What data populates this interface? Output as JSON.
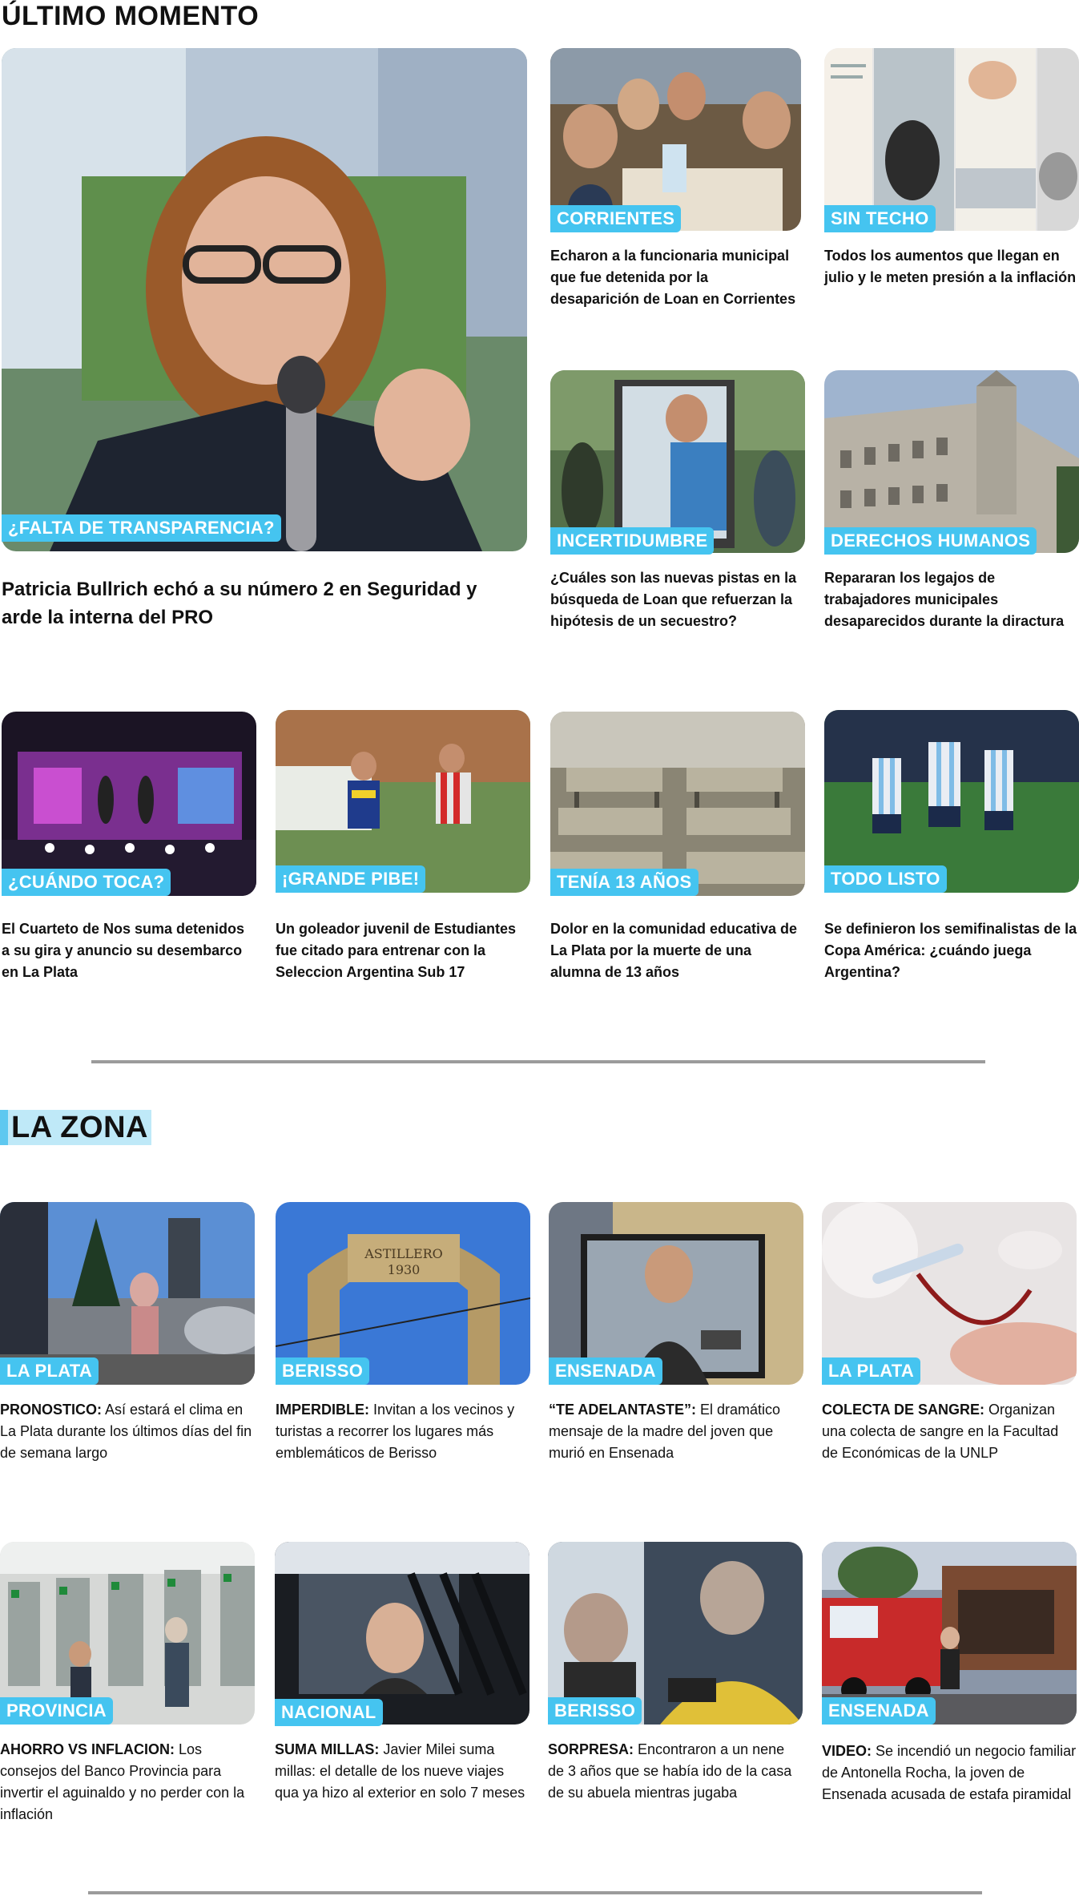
{
  "sections": {
    "ultimo": {
      "title": "ÚLTIMO MOMENTO"
    },
    "zona": {
      "title": "LA ZONA"
    }
  },
  "ultimo_cards": [
    {
      "tag": "¿FALTA DE TRANSPARENCIA?",
      "headline": "Patricia Bullrich echó a su número 2 en Seguridad y arde la interna del PRO",
      "image": "patricia-bullrich-microphone-photo"
    },
    {
      "tag": "CORRIENTES",
      "headline": "Echaron a la funcionaria municipal que fue detenida por la desaparición de Loan en Corrientes",
      "image": "family-table-photo"
    },
    {
      "tag": "SIN TECHO",
      "headline": "Todos los aumentos que llegan en julio y le meten presión a la inflación",
      "image": "bills-collage-photo"
    },
    {
      "tag": "INCERTIDUMBRE",
      "headline": "¿Cuáles son las nuevas pistas en la búsqueda de Loan que refuerzan la hipótesis de un secuestro?",
      "image": "search-loan-photo"
    },
    {
      "tag": "DERECHOS HUMANOS",
      "headline": "Repararan los legajos de trabajadores municipales desaparecidos durante la diractura",
      "image": "municipal-building-photo"
    },
    {
      "tag": "¿CUÁNDO TOCA?",
      "headline": "El Cuarteto de Nos suma detenidos a su gira y anuncio su desembarco en La Plata",
      "image": "concert-stage-photo"
    },
    {
      "tag": "¡GRANDE PIBE!",
      "headline": "Un goleador juvenil de Estudiantes fue citado para entrenar con la Seleccion Argentina Sub 17",
      "image": "youth-soccer-photo"
    },
    {
      "tag": "TENÍA 13 AÑOS",
      "headline": "Dolor en la comunidad educativa de La Plata por la muerte de una alumna de 13 años",
      "image": "classroom-desks-photo"
    },
    {
      "tag": "TODO LISTO",
      "headline": "Se definieron los semifinalistas de la Copa América: ¿cuándo juega Argentina?",
      "image": "argentina-players-photo"
    }
  ],
  "zona_cards": [
    {
      "tag": "LA PLATA",
      "lead": "PRONOSTICO:",
      "rest": " Así estará el clima en La Plata durante los últimos días del fin de semana largo",
      "image": "street-weather-photo"
    },
    {
      "tag": "BERISSO",
      "lead": "IMPERDIBLE:",
      "rest": "  Invitan a los vecinos y turistas a recorrer los lugares más emblemáticos de Berisso",
      "image": "berisso-arch-photo"
    },
    {
      "tag": "ENSENADA",
      "lead": "“TE ADELANTASTE”:",
      "rest": " El dramático mensaje de la madre del joven que murió en Ensenada",
      "image": "young-man-photo"
    },
    {
      "tag": "LA PLATA",
      "lead": "COLECTA DE SANGRE:",
      "rest": " Organizan una colecta de sangre en la Facultad de Económicas de la UNLP",
      "image": "blood-donation-photo"
    },
    {
      "tag": "PROVINCIA",
      "lead": "AHORRO VS INFLACION:",
      "rest": " Los consejos del Banco Provincia para invertir el aguinaldo y no perder con la inflación",
      "image": "atm-machines-photo"
    },
    {
      "tag": "NACIONAL",
      "lead": "SUMA MILLAS:",
      "rest": " Javier Milei suma millas: el detalle de los nueve viajes qua ya hizo al exterior en solo 7 meses",
      "image": "milei-car-photo"
    },
    {
      "tag": "BERISSO",
      "lead": "SORPRESA:",
      "rest": " Encontraron a un nene de 3 años que se había ido de la casa de su abuela mientras jugaba",
      "image": "child-found-photo"
    },
    {
      "tag": "ENSENADA",
      "lead": "VIDEO:",
      "rest": " Se incendió un negocio familiar de Antonella Rocha, la joven de Ensenada acusada de estafa piramidal",
      "image": "fire-truck-photo"
    }
  ],
  "colors": {
    "tag": "#45c4f0",
    "zona_highlight": "#bfe9f8",
    "divider": "#9b9b9b"
  }
}
